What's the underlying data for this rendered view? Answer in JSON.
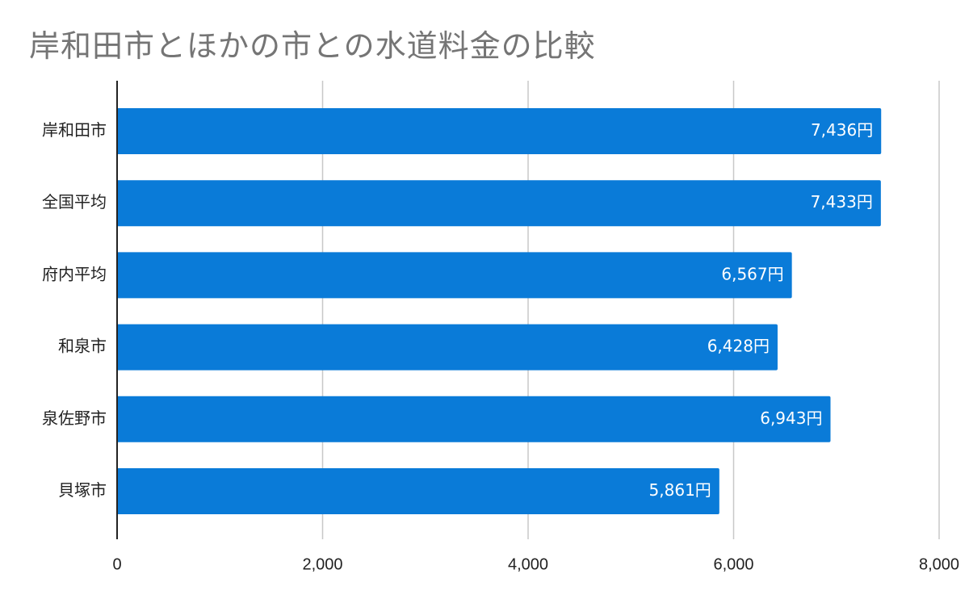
{
  "chart_data": {
    "type": "bar",
    "orientation": "horizontal",
    "title": "岸和田市とほかの市との水道料金の比較",
    "categories": [
      "岸和田市",
      "全国平均",
      "府内平均",
      "和泉市",
      "泉佐野市",
      "貝塚市"
    ],
    "values": [
      7436,
      7433,
      6567,
      6428,
      6943,
      5861
    ],
    "data_labels": [
      "7,436円",
      "7,433円",
      "6,567円",
      "6,428円",
      "6,943円",
      "5,861円"
    ],
    "xlim": [
      0,
      8000
    ],
    "x_ticks": [
      0,
      2000,
      4000,
      6000,
      8000
    ],
    "x_tick_labels": [
      "0",
      "2,000",
      "4,000",
      "6,000",
      "8,000"
    ],
    "xlabel": "",
    "ylabel": "",
    "grid": true,
    "legend": "none",
    "bar_color": "#0a7bd8",
    "grid_color": "#c8c8c8",
    "axis_color": "#222222"
  }
}
